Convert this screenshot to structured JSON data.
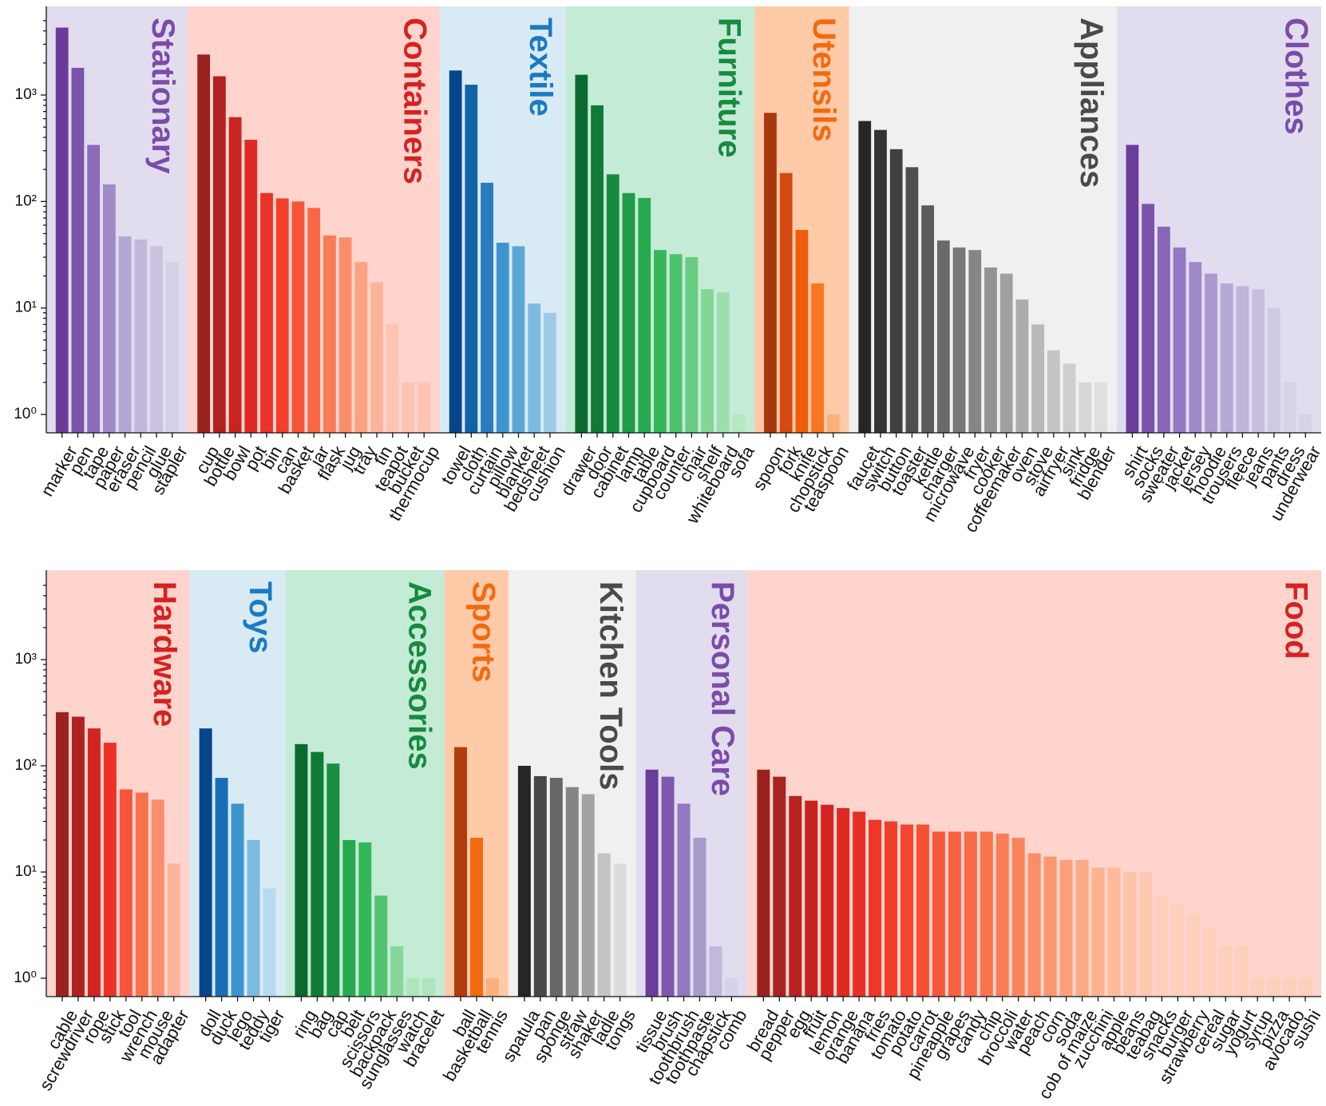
{
  "chart_data": [
    {
      "type": "bar",
      "yscale": "log",
      "ylim": [
        0.75,
        5500
      ],
      "yticks": [
        {
          "value": 1,
          "label": "10⁰"
        },
        {
          "value": 10,
          "label": "10¹"
        },
        {
          "value": 100,
          "label": "10²"
        },
        {
          "value": 1000,
          "label": "10³"
        }
      ],
      "groups": [
        {
          "name": "Stationary",
          "bg": "#e1dcee",
          "title_color": "#7a4ca8",
          "colors": [
            "#6a3d9a",
            "#7a53ab",
            "#8c6bbb",
            "#a08bc8",
            "#b2a6d4",
            "#c0b7dc",
            "#c9c3e0",
            "#d4d0e6"
          ],
          "categories": [
            "marker",
            "pen",
            "tape",
            "paper",
            "eraser",
            "pencil",
            "glue",
            "stapler"
          ],
          "values": [
            4300,
            1800,
            340,
            145,
            47,
            44,
            38,
            27
          ]
        },
        {
          "name": "Containers",
          "bg": "#fed4cc",
          "title_color": "#d42222",
          "colors": [
            "#99221f",
            "#b0221f",
            "#c82420",
            "#dd2a22",
            "#ec3226",
            "#f43f2c",
            "#f75538",
            "#f86847",
            "#f97c58",
            "#fa8e6c",
            "#fba283",
            "#fcb49b",
            "#fdc4b1"
          ],
          "categories": [
            "cup",
            "bottle",
            "bowl",
            "pot",
            "bin",
            "can",
            "basket",
            "jar",
            "flask",
            "jug",
            "tray",
            "tin",
            "teapot",
            "bucket",
            "thermocup"
          ],
          "values": [
            2400,
            1500,
            620,
            380,
            120,
            107,
            100,
            87,
            48,
            46,
            27,
            17.5,
            7,
            2,
            2
          ]
        },
        {
          "name": "Textile",
          "bg": "#d8eaf4",
          "title_color": "#1b7ac2",
          "colors": [
            "#08468c",
            "#1262a8",
            "#2a7cbe",
            "#3e95cd",
            "#5aa7d6",
            "#7cbadf",
            "#9dcbe7",
            "#b8d9ee"
          ],
          "categories": [
            "towel",
            "cloth",
            "curtain",
            "pillow",
            "blanket",
            "bedsheet",
            "cushion"
          ],
          "values": [
            1700,
            1250,
            150,
            41,
            38,
            11,
            9
          ]
        },
        {
          "name": "Furniture",
          "bg": "#c4ebd6",
          "title_color": "#178a3e",
          "colors": [
            "#0b6a2f",
            "#107a36",
            "#178a3e",
            "#1f9a46",
            "#27aa4f",
            "#35b65a",
            "#4cc26c",
            "#68cc81",
            "#83d696",
            "#9ddfac",
            "#b6e8c2"
          ],
          "categories": [
            "drawer",
            "door",
            "cabinet",
            "lamp",
            "table",
            "cupboard",
            "counter",
            "chair",
            "shelf",
            "whiteboard",
            "sofa"
          ],
          "values": [
            1550,
            800,
            180,
            120,
            108,
            35,
            32,
            30,
            15,
            14,
            1
          ]
        },
        {
          "name": "Utensils",
          "bg": "#fecaa8",
          "title_color": "#f26a0f",
          "colors": [
            "#a8380d",
            "#d44812",
            "#ee5c0c",
            "#f77620",
            "#fbb07c"
          ],
          "categories": [
            "spoon",
            "fork",
            "knife",
            "chopstick",
            "teaspoon"
          ],
          "values": [
            680,
            185,
            54,
            17,
            1
          ]
        },
        {
          "name": "Appliances",
          "bg": "#f0f0f0",
          "title_color": "#4a4a4a",
          "colors": [
            "#262626",
            "#333333",
            "#404040",
            "#4e4e4e",
            "#5c5c5c",
            "#6a6a6a",
            "#787878",
            "#868686",
            "#939393",
            "#a0a0a0",
            "#adadad",
            "#b9b9b9",
            "#c4c4c4",
            "#cecece",
            "#d7d7d7",
            "#dfdfdf"
          ],
          "categories": [
            "faucet",
            "switch",
            "button",
            "toaster",
            "kettle",
            "charger",
            "microwave",
            "fryer",
            "cooker",
            "coffeemaker",
            "oven",
            "stove",
            "airfryer",
            "sink",
            "fridge",
            "blender"
          ],
          "values": [
            570,
            470,
            310,
            210,
            92,
            43,
            37,
            35,
            24,
            21,
            12,
            7,
            4,
            3,
            2,
            2
          ]
        },
        {
          "name": "Clothes",
          "bg": "#e1dcee",
          "title_color": "#7a4ca8",
          "colors": [
            "#6a3d9a",
            "#7a53ab",
            "#8766b8",
            "#9478c1",
            "#a089c9",
            "#ab99cf",
            "#b5a8d5",
            "#bfb4da",
            "#c8bfdf",
            "#d0c9e3",
            "#d8d3e8"
          ],
          "categories": [
            "shirt",
            "socks",
            "sweater",
            "jacket",
            "jersey",
            "hoodie",
            "trousers",
            "fleece",
            "jeans",
            "pants",
            "dress",
            "underwear"
          ],
          "values": [
            340,
            95,
            58,
            37,
            27,
            21,
            17,
            16,
            15,
            10,
            2,
            1
          ]
        }
      ]
    },
    {
      "type": "bar",
      "yscale": "log",
      "ylim": [
        0.75,
        5500
      ],
      "yticks": [
        {
          "value": 1,
          "label": "10⁰"
        },
        {
          "value": 10,
          "label": "10¹"
        },
        {
          "value": 100,
          "label": "10²"
        },
        {
          "value": 1000,
          "label": "10³"
        }
      ],
      "groups": [
        {
          "name": "Hardware",
          "bg": "#fed4cc",
          "title_color": "#d42222",
          "colors": [
            "#99221f",
            "#b0221f",
            "#d22521",
            "#ec3226",
            "#f5553a",
            "#f8714f",
            "#fa8e6c",
            "#fcb49b"
          ],
          "categories": [
            "cable",
            "screwdriver",
            "rope",
            "stick",
            "tool",
            "wrench",
            "mouse",
            "adapter"
          ],
          "values": [
            320,
            290,
            225,
            165,
            60,
            56,
            48,
            12
          ]
        },
        {
          "name": "Toys",
          "bg": "#d8eaf4",
          "title_color": "#1b7ac2",
          "colors": [
            "#08468c",
            "#1a6db5",
            "#3e95cd",
            "#7cbadf",
            "#b8d9ee"
          ],
          "categories": [
            "doll",
            "duck",
            "lego",
            "teddy",
            "tiger"
          ],
          "values": [
            225,
            77,
            44,
            20,
            7
          ]
        },
        {
          "name": "Accessories",
          "bg": "#c4ebd6",
          "title_color": "#178a3e",
          "colors": [
            "#0b6a2f",
            "#107a36",
            "#1a8f42",
            "#27aa4f",
            "#34b75a",
            "#52c470",
            "#86d799",
            "#aee5bb"
          ],
          "categories": [
            "ring",
            "bag",
            "cap",
            "belt",
            "scissors",
            "backpack",
            "sunglasses",
            "watch",
            "bracelet"
          ],
          "values": [
            160,
            135,
            105,
            20,
            19,
            6,
            2,
            1,
            1
          ]
        },
        {
          "name": "Sports",
          "bg": "#fecaa8",
          "title_color": "#f26a0f",
          "colors": [
            "#b23d0c",
            "#f26a0f",
            "#fbb07c"
          ],
          "categories": [
            "ball",
            "basketball",
            "tennis"
          ],
          "values": [
            150,
            21,
            1
          ]
        },
        {
          "name": "Kitchen Tools",
          "bg": "#f0f0f0",
          "title_color": "#4a4a4a",
          "colors": [
            "#262626",
            "#474747",
            "#676767",
            "#858585",
            "#a3a3a3",
            "#c3c3c3",
            "#dcdcdc"
          ],
          "categories": [
            "spatula",
            "pan",
            "sponge",
            "straw",
            "shaker",
            "ladle",
            "tongs"
          ],
          "values": [
            100,
            80,
            77,
            63,
            54,
            15,
            12
          ]
        },
        {
          "name": "Personal Care",
          "bg": "#e1dcee",
          "title_color": "#7a4ca8",
          "colors": [
            "#6a3d9a",
            "#7d58ad",
            "#9079bf",
            "#a89bcc",
            "#c1b9db",
            "#d6d2e7"
          ],
          "categories": [
            "tissue",
            "brush",
            "toothbrush",
            "toothpaste",
            "chapstick",
            "comb"
          ],
          "values": [
            92,
            79,
            44,
            21,
            2,
            1
          ]
        },
        {
          "name": "Food",
          "bg": "#fed4cc",
          "title_color": "#d42222",
          "colors": [
            "#99221f",
            "#a8221f",
            "#b7231f",
            "#c52420",
            "#d22521",
            "#dd2a22",
            "#e73025",
            "#ee3727",
            "#f23e2a",
            "#f4462e",
            "#f64f33",
            "#f75839",
            "#f8613f",
            "#f86a46",
            "#f9734d",
            "#fa7c55",
            "#fa855d",
            "#fb8e66",
            "#fb976f",
            "#fca07a",
            "#fca985",
            "#fdb290",
            "#fdbb9c",
            "#fdc3a7",
            "#fdcab1",
            "#fdd0ba"
          ],
          "categories": [
            "bread",
            "pepper",
            "egg",
            "fruit",
            "lemon",
            "orange",
            "banana",
            "fries",
            "tomato",
            "potato",
            "carrot",
            "pineapple",
            "grapes",
            "candy",
            "chip",
            "broccoli",
            "water",
            "peach",
            "corn",
            "soda",
            "cob of maize",
            "zucchini",
            "apple",
            "beans",
            "teabag",
            "snacks",
            "burger",
            "strawberry",
            "cereal",
            "sugar",
            "yogurt",
            "syrup",
            "pizza",
            "avocado",
            "sushi"
          ],
          "values": [
            92,
            79,
            52,
            47,
            43,
            40,
            37,
            31,
            30,
            28,
            28,
            24,
            24,
            24,
            24,
            23,
            21,
            15,
            14,
            13,
            13,
            11,
            11,
            10,
            10,
            6,
            5,
            4,
            3,
            2,
            2,
            1,
            1,
            1,
            1
          ]
        }
      ]
    }
  ]
}
